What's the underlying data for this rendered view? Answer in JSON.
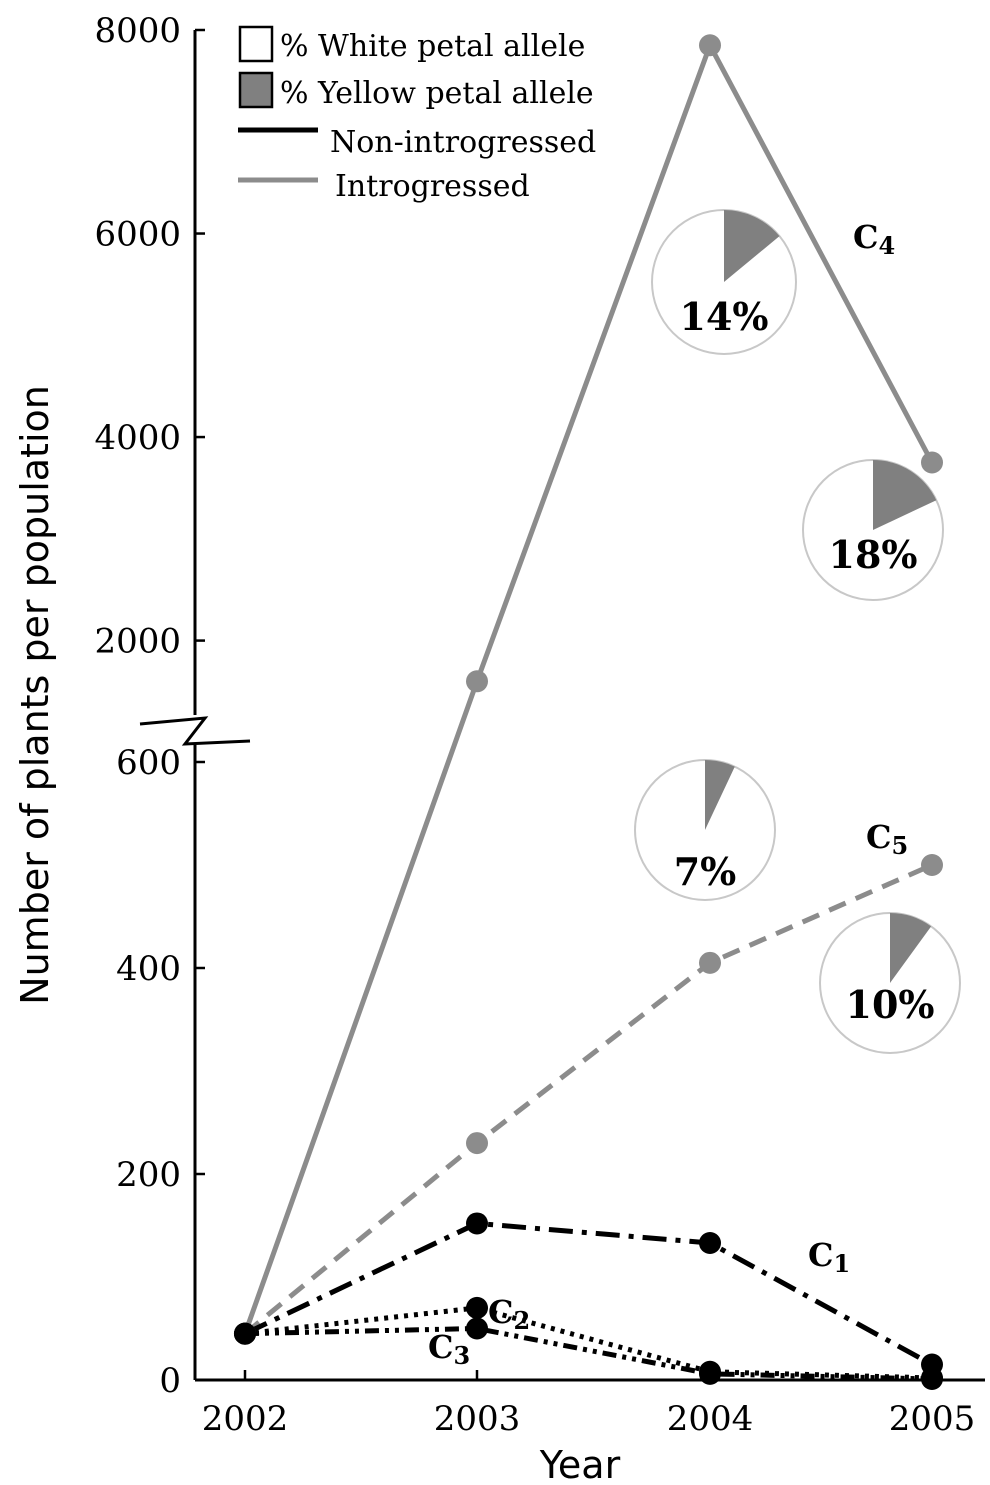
{
  "chart_data": {
    "type": "line",
    "xlabel": "Year",
    "ylabel": "Number of plants per population",
    "x": [
      "2002",
      "2003",
      "2004",
      "2005"
    ],
    "y_axis": {
      "broken": true,
      "lower_segment": {
        "range": [
          0,
          600
        ],
        "ticks": [
          "0",
          "200",
          "400",
          "600"
        ]
      },
      "upper_segment": {
        "range": [
          1200,
          8000
        ],
        "ticks": [
          "2000",
          "4000",
          "6000",
          "8000"
        ]
      }
    },
    "legend": {
      "position": "top-left",
      "entries": [
        {
          "key": "white",
          "label": "% White petal allele"
        },
        {
          "key": "yellow",
          "label": "% Yellow petal allele"
        },
        {
          "key": "non",
          "label": "Non-introgressed"
        },
        {
          "key": "intro",
          "label": "Introgressed"
        }
      ]
    },
    "colors": {
      "non_introgressed": "#000000",
      "introgressed": "#8c8c8c",
      "yellow_allele": "#808080",
      "white_allele": "#ffffff"
    },
    "series": [
      {
        "id": "C4",
        "label": "C",
        "sub": "4",
        "group": "introgressed",
        "dash": "solid",
        "values": [
          45,
          1600,
          7850,
          3750
        ]
      },
      {
        "id": "C5",
        "label": "C",
        "sub": "5",
        "group": "introgressed",
        "dash": "dashed",
        "values": [
          45,
          230,
          405,
          500
        ]
      },
      {
        "id": "C1",
        "label": "C",
        "sub": "1",
        "group": "non_introgressed",
        "dash": "dashdot",
        "values": [
          45,
          152,
          133,
          15
        ]
      },
      {
        "id": "C2",
        "label": "C",
        "sub": "2",
        "group": "non_introgressed",
        "dash": "dotted",
        "values": [
          45,
          70,
          8,
          2
        ]
      },
      {
        "id": "C3",
        "label": "C",
        "sub": "3",
        "group": "non_introgressed",
        "dash": "dashdotdot",
        "values": [
          45,
          50,
          6,
          1
        ]
      }
    ],
    "pies": [
      {
        "series": "C4",
        "year": "2004",
        "yellow_percent": 14,
        "label": "14%"
      },
      {
        "series": "C4",
        "year": "2005",
        "yellow_percent": 18,
        "label": "18%"
      },
      {
        "series": "C5",
        "year": "2004",
        "yellow_percent": 7,
        "label": "7%"
      },
      {
        "series": "C5",
        "year": "2005",
        "yellow_percent": 10,
        "label": "10%"
      }
    ]
  }
}
